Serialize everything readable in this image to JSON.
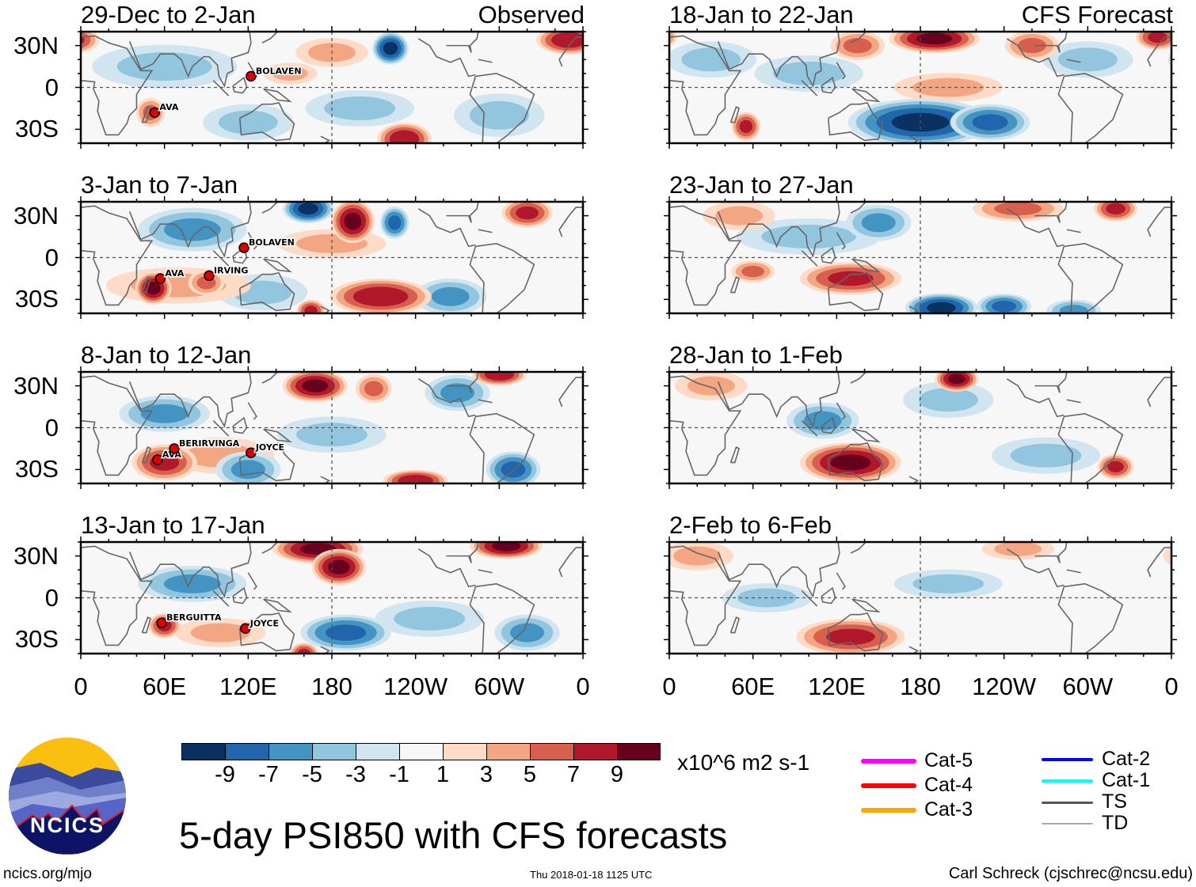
{
  "figure": {
    "title": "5-day PSI850 with CFS forecasts",
    "units": "x10^6 m2 s-1",
    "website": "ncics.org/mjo",
    "timestamp": "Thu 2018-01-18 1125 UTC",
    "author": "Carl Schreck (cjschrec@ncsu.edu)",
    "logo_text": "NCICS",
    "observed_label": "Observed",
    "forecast_label": "CFS Forecast"
  },
  "axes": {
    "lat_labels": [
      "30N",
      "0",
      "30S"
    ],
    "lon_labels": [
      "0",
      "60E",
      "120E",
      "180",
      "120W",
      "60W",
      "0"
    ]
  },
  "colorbar": {
    "colors": [
      "#0a3161",
      "#2166ac",
      "#4393c3",
      "#92c5de",
      "#d1e5f0",
      "#f7f7f7",
      "#fddbc7",
      "#f4a582",
      "#d6604d",
      "#b2182b",
      "#67001f"
    ],
    "labels": [
      "-9",
      "-7",
      "-5",
      "-3",
      "-1",
      "1",
      "3",
      "5",
      "7",
      "9"
    ]
  },
  "legend": [
    {
      "label": "Cat-5",
      "color": "#ff00ff"
    },
    {
      "label": "Cat-4",
      "color": "#ff0000"
    },
    {
      "label": "Cat-3",
      "color": "#ffa500"
    },
    {
      "label": "Cat-2",
      "color": "#0000ff"
    },
    {
      "label": "Cat-1",
      "color": "#00ffff"
    },
    {
      "label": "TS",
      "color": "#555555"
    },
    {
      "label": "TD",
      "color": "#aaaaaa"
    }
  ],
  "panels": [
    {
      "title": "29-Dec to 2-Jan",
      "type": "observed",
      "anomalies": [
        {
          "lon": 60,
          "lat": 15,
          "v": -3,
          "rx": 40,
          "ry": 12
        },
        {
          "lon": 120,
          "lat": -25,
          "v": -3,
          "rx": 25,
          "ry": 10
        },
        {
          "lon": 200,
          "lat": -15,
          "v": -3,
          "rx": 30,
          "ry": 10
        },
        {
          "lon": 300,
          "lat": -20,
          "v": -3,
          "rx": 25,
          "ry": 12
        },
        {
          "lon": 180,
          "lat": 25,
          "v": 3,
          "rx": 20,
          "ry": 8
        },
        {
          "lon": 150,
          "lat": 10,
          "v": 3,
          "rx": 15,
          "ry": 6
        },
        {
          "lon": 50,
          "lat": -18,
          "v": 5,
          "rx": 8,
          "ry": 8
        },
        {
          "lon": 222,
          "lat": 28,
          "v": -9,
          "rx": 10,
          "ry": 9
        },
        {
          "lon": 350,
          "lat": 34,
          "v": 8,
          "rx": 18,
          "ry": 8
        },
        {
          "lon": 232,
          "lat": -37,
          "v": 8,
          "rx": 15,
          "ry": 9
        }
      ],
      "storms": [
        {
          "name": "AVA",
          "lon": 53,
          "lat": -18
        },
        {
          "name": "BOLAVEN",
          "lon": 122,
          "lat": 8
        }
      ]
    },
    {
      "title": "3-Jan to 7-Jan",
      "type": "observed",
      "anomalies": [
        {
          "lon": 80,
          "lat": 20,
          "v": -5,
          "rx": 30,
          "ry": 12
        },
        {
          "lon": 130,
          "lat": -25,
          "v": -3,
          "rx": 25,
          "ry": 10
        },
        {
          "lon": 265,
          "lat": -28,
          "v": -5,
          "rx": 20,
          "ry": 10
        },
        {
          "lon": 180,
          "lat": 10,
          "v": 3,
          "rx": 30,
          "ry": 8
        },
        {
          "lon": 70,
          "lat": -20,
          "v": 3,
          "rx": 40,
          "ry": 10
        },
        {
          "lon": 163,
          "lat": 35,
          "v": -9,
          "rx": 14,
          "ry": 8
        },
        {
          "lon": 195,
          "lat": 26,
          "v": 9,
          "rx": 12,
          "ry": 12
        },
        {
          "lon": 225,
          "lat": 25,
          "v": -7,
          "rx": 8,
          "ry": 9
        },
        {
          "lon": 320,
          "lat": 32,
          "v": 7,
          "rx": 14,
          "ry": 8
        },
        {
          "lon": 52,
          "lat": -22,
          "v": 9,
          "rx": 10,
          "ry": 9
        },
        {
          "lon": 90,
          "lat": -18,
          "v": 5,
          "rx": 10,
          "ry": 7
        },
        {
          "lon": 215,
          "lat": -28,
          "v": 8,
          "rx": 28,
          "ry": 10
        },
        {
          "lon": 165,
          "lat": -38,
          "v": 7,
          "rx": 8,
          "ry": 6
        }
      ],
      "storms": [
        {
          "name": "AVA",
          "lon": 57,
          "lat": -15
        },
        {
          "name": "IRVING",
          "lon": 92,
          "lat": -13
        },
        {
          "name": "BOLAVEN",
          "lon": 117,
          "lat": 7
        }
      ]
    },
    {
      "title": "8-Jan to 12-Jan",
      "type": "observed",
      "anomalies": [
        {
          "lon": 60,
          "lat": 10,
          "v": -5,
          "rx": 25,
          "ry": 10
        },
        {
          "lon": 180,
          "lat": -5,
          "v": -3,
          "rx": 30,
          "ry": 10
        },
        {
          "lon": 100,
          "lat": -20,
          "v": 3,
          "rx": 30,
          "ry": 10
        },
        {
          "lon": 270,
          "lat": 25,
          "v": -5,
          "rx": 18,
          "ry": 10
        },
        {
          "lon": 168,
          "lat": 30,
          "v": 9,
          "rx": 18,
          "ry": 9
        },
        {
          "lon": 210,
          "lat": 28,
          "v": 5,
          "rx": 10,
          "ry": 8
        },
        {
          "lon": 300,
          "lat": 38,
          "v": 8,
          "rx": 15,
          "ry": 6
        },
        {
          "lon": 60,
          "lat": -25,
          "v": 7,
          "rx": 18,
          "ry": 10
        },
        {
          "lon": 120,
          "lat": -30,
          "v": -5,
          "rx": 18,
          "ry": 10
        },
        {
          "lon": 310,
          "lat": -30,
          "v": -7,
          "rx": 15,
          "ry": 10
        },
        {
          "lon": 240,
          "lat": -38,
          "v": 8,
          "rx": 18,
          "ry": 6
        }
      ],
      "storms": [
        {
          "name": "AVA",
          "lon": 55,
          "lat": -23
        },
        {
          "name": "BERIRVINGA",
          "lon": 67,
          "lat": -15
        },
        {
          "name": "JOYCE",
          "lon": 122,
          "lat": -18
        }
      ]
    },
    {
      "title": "13-Jan to 17-Jan",
      "type": "observed",
      "anomalies": [
        {
          "lon": 80,
          "lat": 10,
          "v": -5,
          "rx": 30,
          "ry": 10
        },
        {
          "lon": 250,
          "lat": -15,
          "v": -3,
          "rx": 30,
          "ry": 10
        },
        {
          "lon": 100,
          "lat": -25,
          "v": 3,
          "rx": 25,
          "ry": 8
        },
        {
          "lon": 170,
          "lat": 35,
          "v": 9,
          "rx": 25,
          "ry": 8
        },
        {
          "lon": 185,
          "lat": 22,
          "v": 9,
          "rx": 15,
          "ry": 10
        },
        {
          "lon": 305,
          "lat": 37,
          "v": 9,
          "rx": 20,
          "ry": 7
        },
        {
          "lon": 60,
          "lat": -20,
          "v": 7,
          "rx": 9,
          "ry": 7
        },
        {
          "lon": 190,
          "lat": -25,
          "v": -7,
          "rx": 25,
          "ry": 10
        },
        {
          "lon": 320,
          "lat": -25,
          "v": -5,
          "rx": 18,
          "ry": 10
        },
        {
          "lon": 160,
          "lat": -40,
          "v": 7,
          "rx": 8,
          "ry": 6
        }
      ],
      "storms": [
        {
          "name": "BERGUITTA",
          "lon": 58,
          "lat": -18
        },
        {
          "name": "JOYCE",
          "lon": 118,
          "lat": -22
        }
      ]
    },
    {
      "title": "18-Jan to 22-Jan",
      "type": "forecast",
      "anomalies": [
        {
          "lon": 30,
          "lat": 20,
          "v": -3,
          "rx": 25,
          "ry": 10
        },
        {
          "lon": 100,
          "lat": 10,
          "v": -3,
          "rx": 30,
          "ry": 10
        },
        {
          "lon": 200,
          "lat": 0,
          "v": 3,
          "rx": 30,
          "ry": 8
        },
        {
          "lon": 300,
          "lat": 20,
          "v": -3,
          "rx": 25,
          "ry": 10
        },
        {
          "lon": 190,
          "lat": 35,
          "v": 9,
          "rx": 25,
          "ry": 8
        },
        {
          "lon": 135,
          "lat": 30,
          "v": 5,
          "rx": 15,
          "ry": 8
        },
        {
          "lon": 260,
          "lat": 30,
          "v": 5,
          "rx": 15,
          "ry": 8
        },
        {
          "lon": 350,
          "lat": 36,
          "v": 7,
          "rx": 12,
          "ry": 7
        },
        {
          "lon": 180,
          "lat": -25,
          "v": -9,
          "rx": 40,
          "ry": 13
        },
        {
          "lon": 230,
          "lat": -25,
          "v": -7,
          "rx": 22,
          "ry": 10
        },
        {
          "lon": 55,
          "lat": -28,
          "v": 7,
          "rx": 8,
          "ry": 8
        }
      ],
      "storms": []
    },
    {
      "title": "23-Jan to 27-Jan",
      "type": "forecast",
      "anomalies": [
        {
          "lon": 100,
          "lat": 15,
          "v": -3,
          "rx": 40,
          "ry": 10
        },
        {
          "lon": 50,
          "lat": 30,
          "v": 3,
          "rx": 20,
          "ry": 8
        },
        {
          "lon": 150,
          "lat": 25,
          "v": -5,
          "rx": 18,
          "ry": 10
        },
        {
          "lon": 250,
          "lat": 35,
          "v": 5,
          "rx": 25,
          "ry": 7
        },
        {
          "lon": 320,
          "lat": 35,
          "v": 7,
          "rx": 12,
          "ry": 7
        },
        {
          "lon": 130,
          "lat": -15,
          "v": 7,
          "rx": 28,
          "ry": 9
        },
        {
          "lon": 60,
          "lat": -10,
          "v": 5,
          "rx": 12,
          "ry": 6
        },
        {
          "lon": 195,
          "lat": -36,
          "v": -9,
          "rx": 20,
          "ry": 8
        },
        {
          "lon": 240,
          "lat": -35,
          "v": -7,
          "rx": 15,
          "ry": 7
        },
        {
          "lon": 290,
          "lat": -38,
          "v": -5,
          "rx": 15,
          "ry": 6
        }
      ],
      "storms": []
    },
    {
      "title": "28-Jan to 1-Feb",
      "type": "forecast",
      "anomalies": [
        {
          "lon": 30,
          "lat": 30,
          "v": 3,
          "rx": 20,
          "ry": 8
        },
        {
          "lon": 200,
          "lat": 20,
          "v": -3,
          "rx": 25,
          "ry": 10
        },
        {
          "lon": 270,
          "lat": -20,
          "v": -3,
          "rx": 30,
          "ry": 10
        },
        {
          "lon": 110,
          "lat": 5,
          "v": -5,
          "rx": 20,
          "ry": 10
        },
        {
          "lon": 206,
          "lat": 35,
          "v": 9,
          "rx": 12,
          "ry": 7
        },
        {
          "lon": 130,
          "lat": -25,
          "v": 9,
          "rx": 28,
          "ry": 11
        },
        {
          "lon": 320,
          "lat": -28,
          "v": 7,
          "rx": 10,
          "ry": 7
        }
      ],
      "storms": []
    },
    {
      "title": "2-Feb to 6-Feb",
      "type": "forecast",
      "anomalies": [
        {
          "lon": 20,
          "lat": 30,
          "v": 3,
          "rx": 20,
          "ry": 8
        },
        {
          "lon": 70,
          "lat": 0,
          "v": -3,
          "rx": 25,
          "ry": 8
        },
        {
          "lon": 200,
          "lat": 10,
          "v": -3,
          "rx": 30,
          "ry": 8
        },
        {
          "lon": 250,
          "lat": 35,
          "v": 3,
          "rx": 20,
          "ry": 6
        },
        {
          "lon": 130,
          "lat": -28,
          "v": 7,
          "rx": 30,
          "ry": 10
        }
      ],
      "storms": []
    }
  ]
}
